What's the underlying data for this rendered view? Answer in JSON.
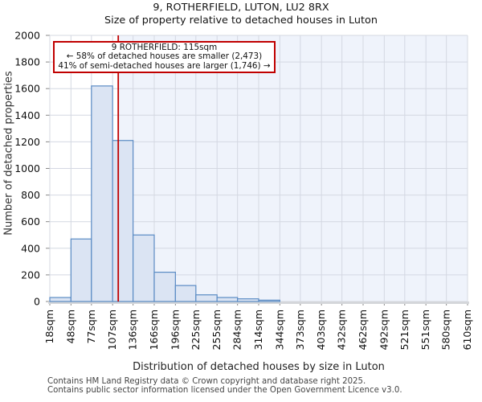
{
  "header": {
    "title": "9, ROTHERFIELD, LUTON, LU2 8RX",
    "subtitle": "Size of property relative to detached houses in Luton"
  },
  "chart_data": {
    "type": "bar",
    "histogram": true,
    "title": "9, ROTHERFIELD, LUTON, LU2 8RX",
    "subtitle": "Size of property relative to detached houses in Luton",
    "xlabel": "Distribution of detached houses by size in Luton",
    "ylabel": "Number of detached properties",
    "bin_edges_sqm": [
      18,
      48,
      77,
      107,
      136,
      166,
      196,
      225,
      255,
      284,
      314,
      344,
      373,
      403,
      432,
      462,
      492,
      521,
      551,
      580,
      610
    ],
    "x_tick_labels": [
      "18sqm",
      "48sqm",
      "77sqm",
      "107sqm",
      "136sqm",
      "166sqm",
      "196sqm",
      "225sqm",
      "255sqm",
      "284sqm",
      "314sqm",
      "344sqm",
      "373sqm",
      "403sqm",
      "432sqm",
      "462sqm",
      "492sqm",
      "521sqm",
      "551sqm",
      "580sqm",
      "610sqm"
    ],
    "values": [
      30,
      470,
      1620,
      1210,
      500,
      220,
      120,
      50,
      30,
      20,
      10,
      0,
      0,
      0,
      0,
      0,
      0,
      0,
      0,
      0
    ],
    "ylim": [
      0,
      2000
    ],
    "ytick_step": 200,
    "grid": true,
    "legend": "none",
    "marker": {
      "value_sqm": 115,
      "color": "#c00000"
    },
    "shaded_region": {
      "from_sqm": 115,
      "to_sqm": 610,
      "color": "#eff3fb"
    },
    "colors": {
      "bar_fill": "#dbe4f3",
      "bar_stroke": "#5a8bc4",
      "grid": "#d4d8e2",
      "baseline": "#d4d6da",
      "tick_mark": "#888888",
      "tick_text": "#111111"
    }
  },
  "annotation": {
    "line1": "9 ROTHERFIELD: 115sqm",
    "line2": "← 58% of detached houses are smaller (2,473)",
    "line3": "41% of semi-detached houses are larger (1,746) →",
    "border_color": "#c00000"
  },
  "footer": {
    "line1": "Contains HM Land Registry data © Crown copyright and database right 2025.",
    "line2": "Contains public sector information licensed under the Open Government Licence v3.0."
  }
}
